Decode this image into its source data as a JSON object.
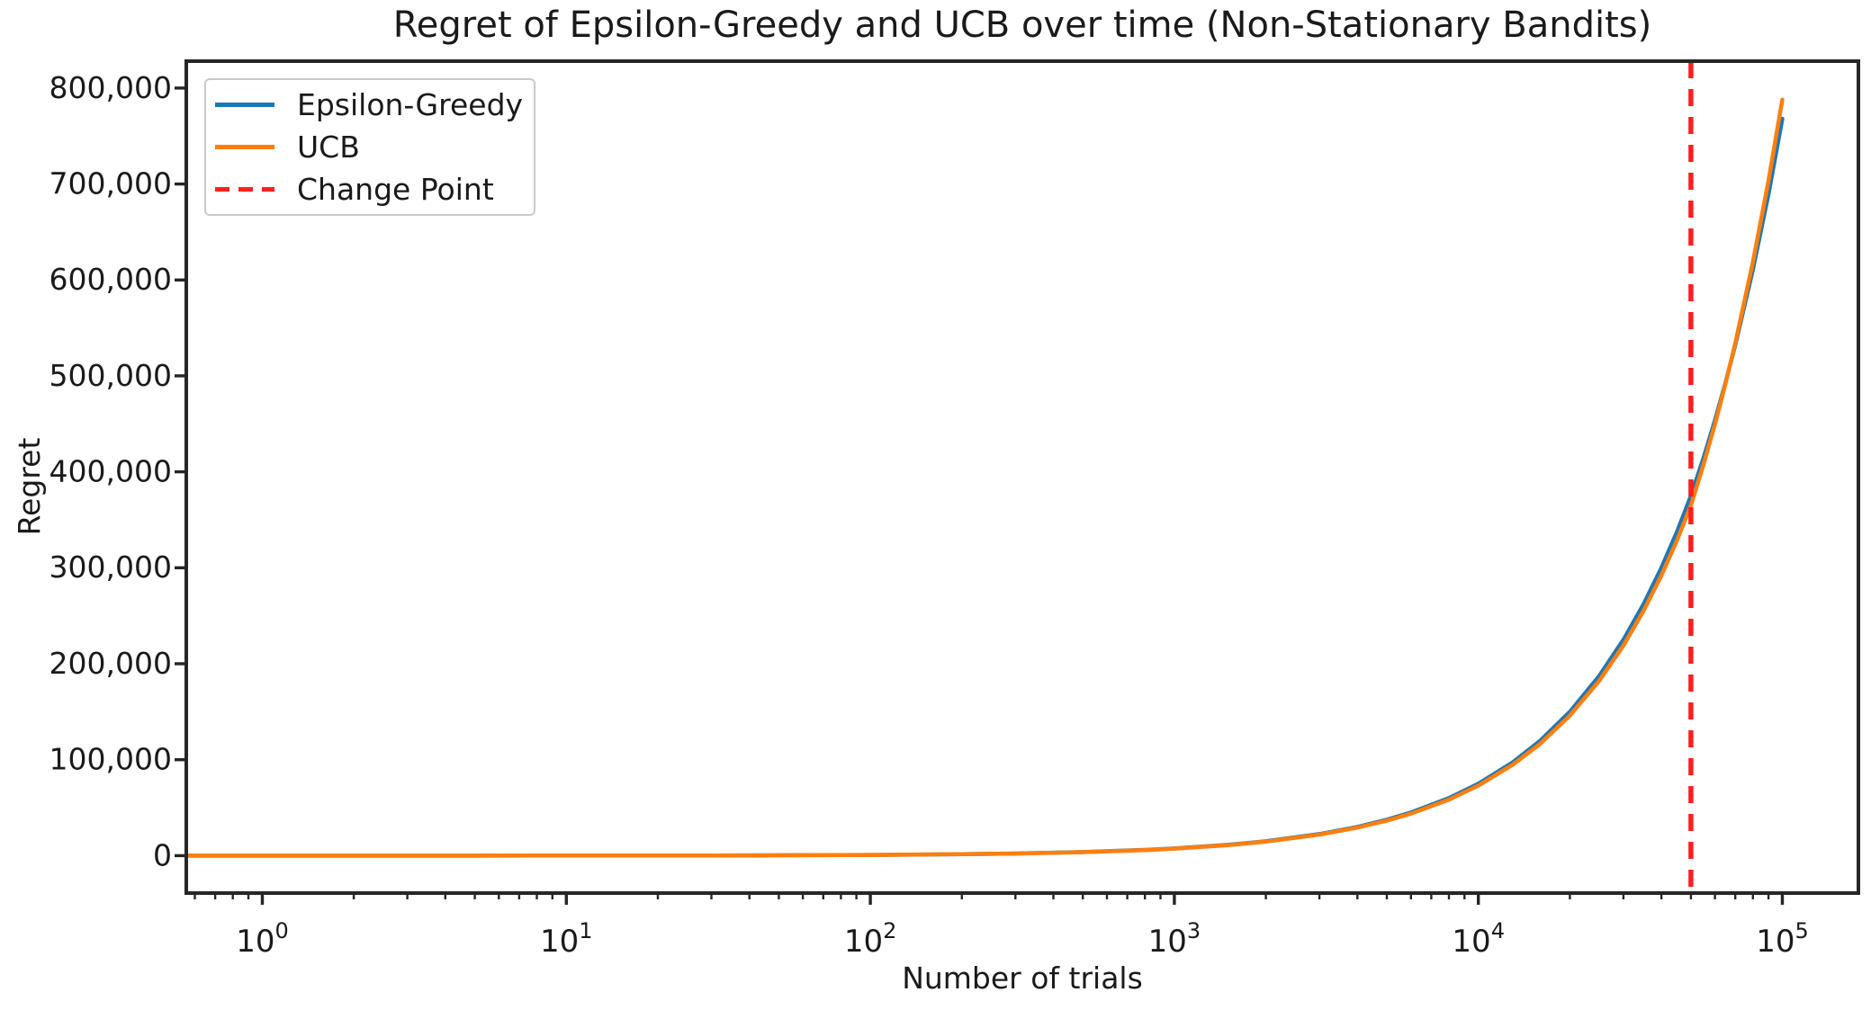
{
  "figure": {
    "background": "#ffffff",
    "text_color": "#1a1a1a",
    "axis_color": "#262626"
  },
  "chart_data": {
    "type": "line",
    "title": "Regret of Epsilon-Greedy and UCB over time (Non-Stationary Bandits)",
    "xlabel": "Number of trials",
    "ylabel": "Regret",
    "x_scale": "log",
    "xlim_log10": [
      -0.25,
      5.25
    ],
    "ylim": [
      -39000,
      828000
    ],
    "grid": false,
    "x_major_ticks": [
      {
        "value": 1,
        "base": "10",
        "exp": "0"
      },
      {
        "value": 10,
        "base": "10",
        "exp": "1"
      },
      {
        "value": 100,
        "base": "10",
        "exp": "2"
      },
      {
        "value": 1000,
        "base": "10",
        "exp": "3"
      },
      {
        "value": 10000,
        "base": "10",
        "exp": "4"
      },
      {
        "value": 100000,
        "base": "10",
        "exp": "5"
      }
    ],
    "x_minor_decades": [
      -1,
      0,
      1,
      2,
      3,
      4,
      5
    ],
    "x_minor_subs": [
      2,
      3,
      4,
      5,
      6,
      7,
      8,
      9
    ],
    "y_ticks": [
      {
        "value": 0,
        "label": "0"
      },
      {
        "value": 100000,
        "label": "100,000"
      },
      {
        "value": 200000,
        "label": "200,000"
      },
      {
        "value": 300000,
        "label": "300,000"
      },
      {
        "value": 400000,
        "label": "400,000"
      },
      {
        "value": 500000,
        "label": "500,000"
      },
      {
        "value": 600000,
        "label": "600,000"
      },
      {
        "value": 700000,
        "label": "700,000"
      },
      {
        "value": 800000,
        "label": "800,000"
      }
    ],
    "change_point": {
      "x": 50000,
      "label": "Change Point",
      "color": "#ff1f1f",
      "dash": [
        19,
        12
      ]
    },
    "series": [
      {
        "name": "Epsilon-Greedy",
        "color": "#1f77b4",
        "x": [
          0.56,
          1,
          2,
          3,
          5,
          8,
          10,
          20,
          30,
          50,
          80,
          100,
          200,
          300,
          500,
          800,
          1000,
          1500,
          2000,
          3000,
          4000,
          5000,
          6000,
          8000,
          10000,
          13000,
          16000,
          20000,
          25000,
          30000,
          35000,
          40000,
          45000,
          50000,
          55000,
          60000,
          65000,
          70000,
          80000,
          90000,
          100000
        ],
        "y": [
          4,
          8,
          15,
          23,
          38,
          60,
          75,
          150,
          225,
          375,
          600,
          750,
          1500,
          2250,
          3750,
          6000,
          7500,
          11250,
          15000,
          22500,
          30000,
          37500,
          45000,
          60000,
          75000,
          97500,
          120000,
          150000,
          187500,
          225000,
          262500,
          300000,
          337500,
          375000,
          414300,
          453600,
          492900,
          532200,
          610800,
          689400,
          768000
        ]
      },
      {
        "name": "UCB",
        "color": "#ff7f0e",
        "x": [
          0.56,
          1,
          2,
          3,
          5,
          8,
          10,
          20,
          30,
          50,
          80,
          100,
          200,
          300,
          500,
          800,
          1000,
          1500,
          2000,
          3000,
          4000,
          5000,
          6000,
          8000,
          10000,
          13000,
          16000,
          20000,
          25000,
          30000,
          35000,
          40000,
          45000,
          50000,
          55000,
          60000,
          65000,
          70000,
          80000,
          90000,
          100000
        ],
        "y": [
          4,
          7,
          15,
          22,
          37,
          58,
          73,
          146,
          219,
          365,
          584,
          730,
          1460,
          2190,
          3650,
          5840,
          7300,
          10950,
          14600,
          21900,
          29200,
          36500,
          43800,
          58400,
          73000,
          94900,
          116800,
          146000,
          182500,
          219000,
          255500,
          292000,
          328500,
          365000,
          407300,
          449600,
          491900,
          534200,
          618800,
          703400,
          788000
        ]
      }
    ],
    "legend": {
      "position": "upper left",
      "entries": [
        {
          "label": "Epsilon-Greedy",
          "color": "#1f77b4",
          "style": "solid"
        },
        {
          "label": "UCB",
          "color": "#ff7f0e",
          "style": "solid"
        },
        {
          "label": "Change Point",
          "color": "#ff1f1f",
          "style": "dashed"
        }
      ]
    }
  }
}
